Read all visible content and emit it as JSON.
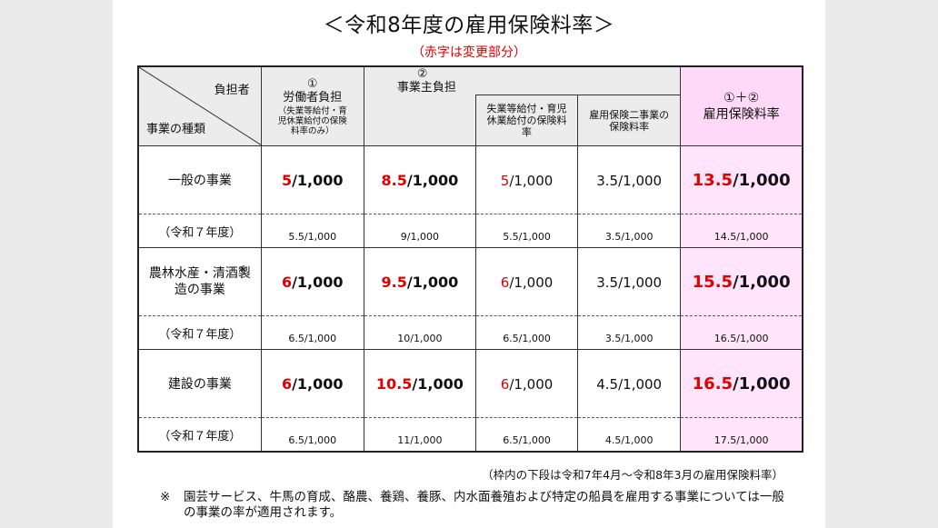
{
  "title": "＜令和8年度の雇用保険料率＞",
  "subtitle": "（赤字は変更部分）",
  "header": {
    "payer_label": "負担者",
    "category_label": "事業の種類",
    "worker_num": "①",
    "worker_main": "労働者負担",
    "worker_note": "（失業等給付・育児休業給付の保険料率のみ）",
    "employer_num": "②",
    "employer_main": "事業主負担",
    "employer_sub1": "失業等給付・育児休業給付の保険料率",
    "employer_sub2": "雇用保険二事業の保険料率",
    "total_num": "①＋②",
    "total_main": "雇用保険料率"
  },
  "rows": [
    {
      "category": "一般の事業",
      "category_mark": "",
      "worker_red": "5",
      "worker_rest": "/1,000",
      "employer_red": "8.5",
      "employer_rest": "/1,000",
      "sub1_red": "5",
      "sub1_rest": "/1,000",
      "sub2": "3.5/1,000",
      "total_red": "13.5",
      "total_rest": "/1,000",
      "prev_label": "（令和７年度）",
      "prev_worker": "5.5/1,000",
      "prev_employer": "9/1,000",
      "prev_sub1": "5.5/1,000",
      "prev_sub2": "3.5/1,000",
      "prev_total": "14.5/1,000"
    },
    {
      "category": "農林水産・清酒製造の事業",
      "category_mark": "※",
      "worker_red": "6",
      "worker_rest": "/1,000",
      "employer_red": "9.5",
      "employer_rest": "/1,000",
      "sub1_red": "6",
      "sub1_rest": "/1,000",
      "sub2": "3.5/1,000",
      "total_red": "15.5",
      "total_rest": "/1,000",
      "prev_label": "（令和７年度）",
      "prev_worker": "6.5/1,000",
      "prev_employer": "10/1,000",
      "prev_sub1": "6.5/1,000",
      "prev_sub2": "3.5/1,000",
      "prev_total": "16.5/1,000"
    },
    {
      "category": "建設の事業",
      "category_mark": "",
      "worker_red": "6",
      "worker_rest": "/1,000",
      "employer_red": "10.5",
      "employer_rest": "/1,000",
      "sub1_red": "6",
      "sub1_rest": "/1,000",
      "sub2": "4.5/1,000",
      "total_red": "16.5",
      "total_rest": "/1,000",
      "prev_label": "（令和７年度）",
      "prev_worker": "6.5/1,000",
      "prev_employer": "11/1,000",
      "prev_sub1": "6.5/1,000",
      "prev_sub2": "4.5/1,000",
      "prev_total": "17.5/1,000"
    }
  ],
  "notes": {
    "period": "（枠内の下段は令和7年4月～令和8年3月の雇用保険料率）",
    "mark": "※",
    "footnote": "園芸サービス、牛馬の育成、酪農、養鶏、養豚、内水面養殖および特定の船員を雇用する事業については一般の事業の率が適用されます。"
  },
  "colors": {
    "changed_text": "#e00000",
    "total_column_bg": "#ffe4fb",
    "header_bg": "#ececec"
  }
}
